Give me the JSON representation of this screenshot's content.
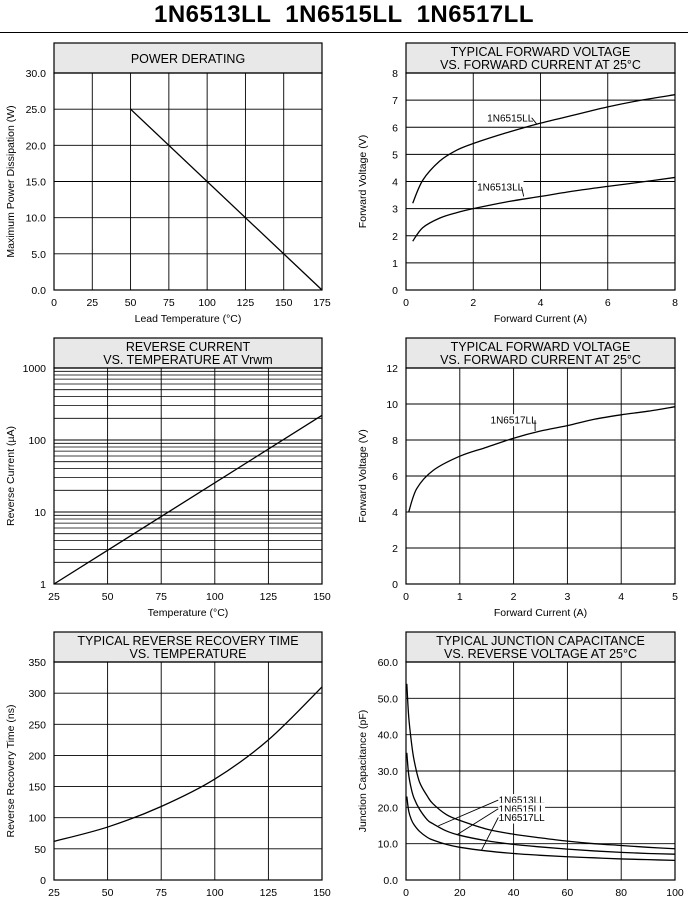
{
  "page": {
    "title": "1N6513LL  1N6515LL  1N6517LL"
  },
  "chart_data": [
    {
      "id": "power-derating",
      "type": "line",
      "title": [
        "POWER DERATING"
      ],
      "xlabel": "Lead Temperature (°C)",
      "ylabel": "Maximum Power Dissipation (W)",
      "xlim": [
        0,
        175
      ],
      "ylim": [
        0,
        30
      ],
      "xscale": "linear",
      "yscale": "linear",
      "xticks": [
        0,
        25,
        50,
        75,
        100,
        125,
        150,
        175
      ],
      "xticklabels": [
        "0",
        "25",
        "50",
        "75",
        "100",
        "125",
        "150",
        "175"
      ],
      "yticks": [
        0,
        5,
        10,
        15,
        20,
        25,
        30
      ],
      "yticklabels": [
        "0.0",
        "5.0",
        "10.0",
        "15.0",
        "20.0",
        "25.0",
        "30.0"
      ],
      "grid": true,
      "series": [
        {
          "name": "",
          "x": [
            50,
            175
          ],
          "y": [
            25,
            0
          ]
        }
      ],
      "annotations": []
    },
    {
      "id": "fwd-voltage-1",
      "type": "line",
      "title": [
        "TYPICAL FORWARD VOLTAGE",
        "VS. FORWARD CURRENT AT 25°C"
      ],
      "xlabel": "Forward Current (A)",
      "ylabel": "Forward Voltage (V)",
      "xlim": [
        0,
        8
      ],
      "ylim": [
        0,
        8
      ],
      "xscale": "linear",
      "yscale": "linear",
      "xticks": [
        0,
        2,
        4,
        6,
        8
      ],
      "xticklabels": [
        "0",
        "2",
        "4",
        "6",
        "8"
      ],
      "yticks": [
        0,
        1,
        2,
        3,
        4,
        5,
        6,
        7,
        8
      ],
      "yticklabels": [
        "0",
        "1",
        "2",
        "3",
        "4",
        "5",
        "6",
        "7",
        "8"
      ],
      "grid": true,
      "series": [
        {
          "name": "1N6515LL",
          "x": [
            0.2,
            0.5,
            1,
            1.5,
            2,
            3,
            4,
            5,
            6,
            7,
            8
          ],
          "y": [
            3.2,
            4.05,
            4.75,
            5.15,
            5.4,
            5.8,
            6.15,
            6.45,
            6.75,
            7.0,
            7.2
          ]
        },
        {
          "name": "1N6513LL",
          "x": [
            0.2,
            0.5,
            1,
            1.5,
            2,
            3,
            4,
            5,
            6,
            7,
            8
          ],
          "y": [
            1.8,
            2.3,
            2.65,
            2.85,
            3.0,
            3.25,
            3.45,
            3.65,
            3.82,
            3.98,
            4.15
          ]
        }
      ],
      "annotations": [
        {
          "text": "1N6515LL",
          "x": 3.1,
          "y": 6.35,
          "to_x": 3.9,
          "to_y": 6.1
        },
        {
          "text": "1N6513LL",
          "x": 2.8,
          "y": 3.8,
          "to_x": 3.5,
          "to_y": 3.45
        }
      ]
    },
    {
      "id": "reverse-current",
      "type": "line",
      "title": [
        "REVERSE CURRENT",
        "VS. TEMPERATURE AT Vrwm"
      ],
      "xlabel": "Temperature (°C)",
      "ylabel": "Reverse Current (µA)",
      "xlim": [
        25,
        150
      ],
      "ylim": [
        1,
        1000
      ],
      "xscale": "linear",
      "yscale": "log",
      "xticks": [
        25,
        50,
        75,
        100,
        125,
        150
      ],
      "xticklabels": [
        "25",
        "50",
        "75",
        "100",
        "125",
        "150"
      ],
      "yticks": [
        1,
        10,
        100,
        1000
      ],
      "yticklabels": [
        "1",
        "10",
        "100",
        "1000"
      ],
      "grid": true,
      "series": [
        {
          "name": "",
          "x": [
            25,
            150
          ],
          "y": [
            1,
            220
          ]
        }
      ],
      "annotations": []
    },
    {
      "id": "fwd-voltage-2",
      "type": "line",
      "title": [
        "TYPICAL FORWARD VOLTAGE",
        "VS. FORWARD CURRENT AT 25°C"
      ],
      "xlabel": "Forward Current (A)",
      "ylabel": "Forward Voltage (V)",
      "xlim": [
        0,
        5
      ],
      "ylim": [
        0,
        12
      ],
      "xscale": "linear",
      "yscale": "linear",
      "xticks": [
        0,
        1,
        2,
        3,
        4,
        5
      ],
      "xticklabels": [
        "0",
        "1",
        "2",
        "3",
        "4",
        "5"
      ],
      "yticks": [
        0,
        2,
        4,
        6,
        8,
        10,
        12
      ],
      "yticklabels": [
        "0",
        "2",
        "4",
        "6",
        "8",
        "10",
        "12"
      ],
      "grid": true,
      "series": [
        {
          "name": "1N6517LL",
          "x": [
            0.05,
            0.2,
            0.5,
            1,
            1.5,
            2,
            2.5,
            3,
            3.5,
            4,
            4.5,
            5
          ],
          "y": [
            4.0,
            5.3,
            6.3,
            7.1,
            7.6,
            8.1,
            8.5,
            8.8,
            9.15,
            9.4,
            9.6,
            9.85
          ]
        }
      ],
      "annotations": [
        {
          "text": "1N6517LL",
          "x": 2.0,
          "y": 9.1,
          "to_x": 2.4,
          "to_y": 8.5
        }
      ]
    },
    {
      "id": "reverse-recovery",
      "type": "line",
      "title": [
        "TYPICAL REVERSE RECOVERY TIME",
        "VS. TEMPERATURE"
      ],
      "xlabel": "",
      "ylabel": "Reverse Recovery Time (ns)",
      "xlim": [
        25,
        150
      ],
      "ylim": [
        0,
        350
      ],
      "xscale": "linear",
      "yscale": "linear",
      "xticks": [
        25,
        50,
        75,
        100,
        125,
        150
      ],
      "xticklabels": [
        "25",
        "50",
        "75",
        "100",
        "125",
        "150"
      ],
      "yticks": [
        0,
        50,
        100,
        150,
        200,
        250,
        300,
        350
      ],
      "yticklabels": [
        "0",
        "50",
        "100",
        "150",
        "200",
        "250",
        "300",
        "350"
      ],
      "grid": true,
      "series": [
        {
          "name": "",
          "x": [
            25,
            50,
            75,
            100,
            125,
            150
          ],
          "y": [
            62,
            85,
            118,
            162,
            225,
            310
          ]
        }
      ],
      "annotations": []
    },
    {
      "id": "junction-capacitance",
      "type": "line",
      "title": [
        "TYPICAL JUNCTION CAPACITANCE",
        "VS. REVERSE VOLTAGE AT 25°C"
      ],
      "xlabel": "",
      "ylabel": "Junction Capacitance (pF)",
      "xlim": [
        0,
        100
      ],
      "ylim": [
        0,
        60
      ],
      "xscale": "linear",
      "yscale": "linear",
      "xticks": [
        0,
        20,
        40,
        60,
        80,
        100
      ],
      "xticklabels": [
        "0",
        "20",
        "40",
        "60",
        "80",
        "100"
      ],
      "yticks": [
        0,
        10,
        20,
        30,
        40,
        50,
        60
      ],
      "yticklabels": [
        "0.0",
        "10.0",
        "20.0",
        "30.0",
        "40.0",
        "50.0",
        "60.0"
      ],
      "grid": true,
      "series": [
        {
          "name": "1N6513LL",
          "x": [
            0.3,
            1,
            2,
            3,
            5,
            8,
            10,
            15,
            20,
            30,
            40,
            50,
            60,
            70,
            80,
            90,
            100
          ],
          "y": [
            54,
            45,
            38,
            33,
            27,
            23,
            21,
            18,
            16.4,
            14,
            12.6,
            11.6,
            10.7,
            10,
            9.5,
            9,
            8.6
          ]
        },
        {
          "name": "1N6515LL",
          "x": [
            0.3,
            1,
            2,
            3,
            5,
            8,
            10,
            15,
            20,
            30,
            40,
            50,
            60,
            70,
            80,
            90,
            100
          ],
          "y": [
            35,
            29,
            25,
            22.5,
            19.5,
            16.5,
            15.5,
            13.5,
            12.3,
            10.8,
            9.8,
            9.1,
            8.5,
            8,
            7.6,
            7.3,
            7.1
          ]
        },
        {
          "name": "1N6517LL",
          "x": [
            0.3,
            1,
            2,
            3,
            5,
            8,
            10,
            15,
            20,
            30,
            40,
            50,
            60,
            70,
            80,
            90,
            100
          ],
          "y": [
            23,
            19,
            16.6,
            15.2,
            13.4,
            11.7,
            11,
            9.8,
            9,
            8,
            7.3,
            6.8,
            6.4,
            6.1,
            5.8,
            5.6,
            5.4
          ]
        }
      ],
      "annotations": [
        {
          "text": "1N6513LL",
          "x": 43,
          "y": 22,
          "to_x": 12,
          "to_y": 14.9
        },
        {
          "text": "1N6515LL",
          "x": 43,
          "y": 19.6,
          "to_x": 19,
          "to_y": 12.5
        },
        {
          "text": "1N6517LL",
          "x": 43,
          "y": 17.2,
          "to_x": 28,
          "to_y": 8.1
        }
      ]
    }
  ]
}
